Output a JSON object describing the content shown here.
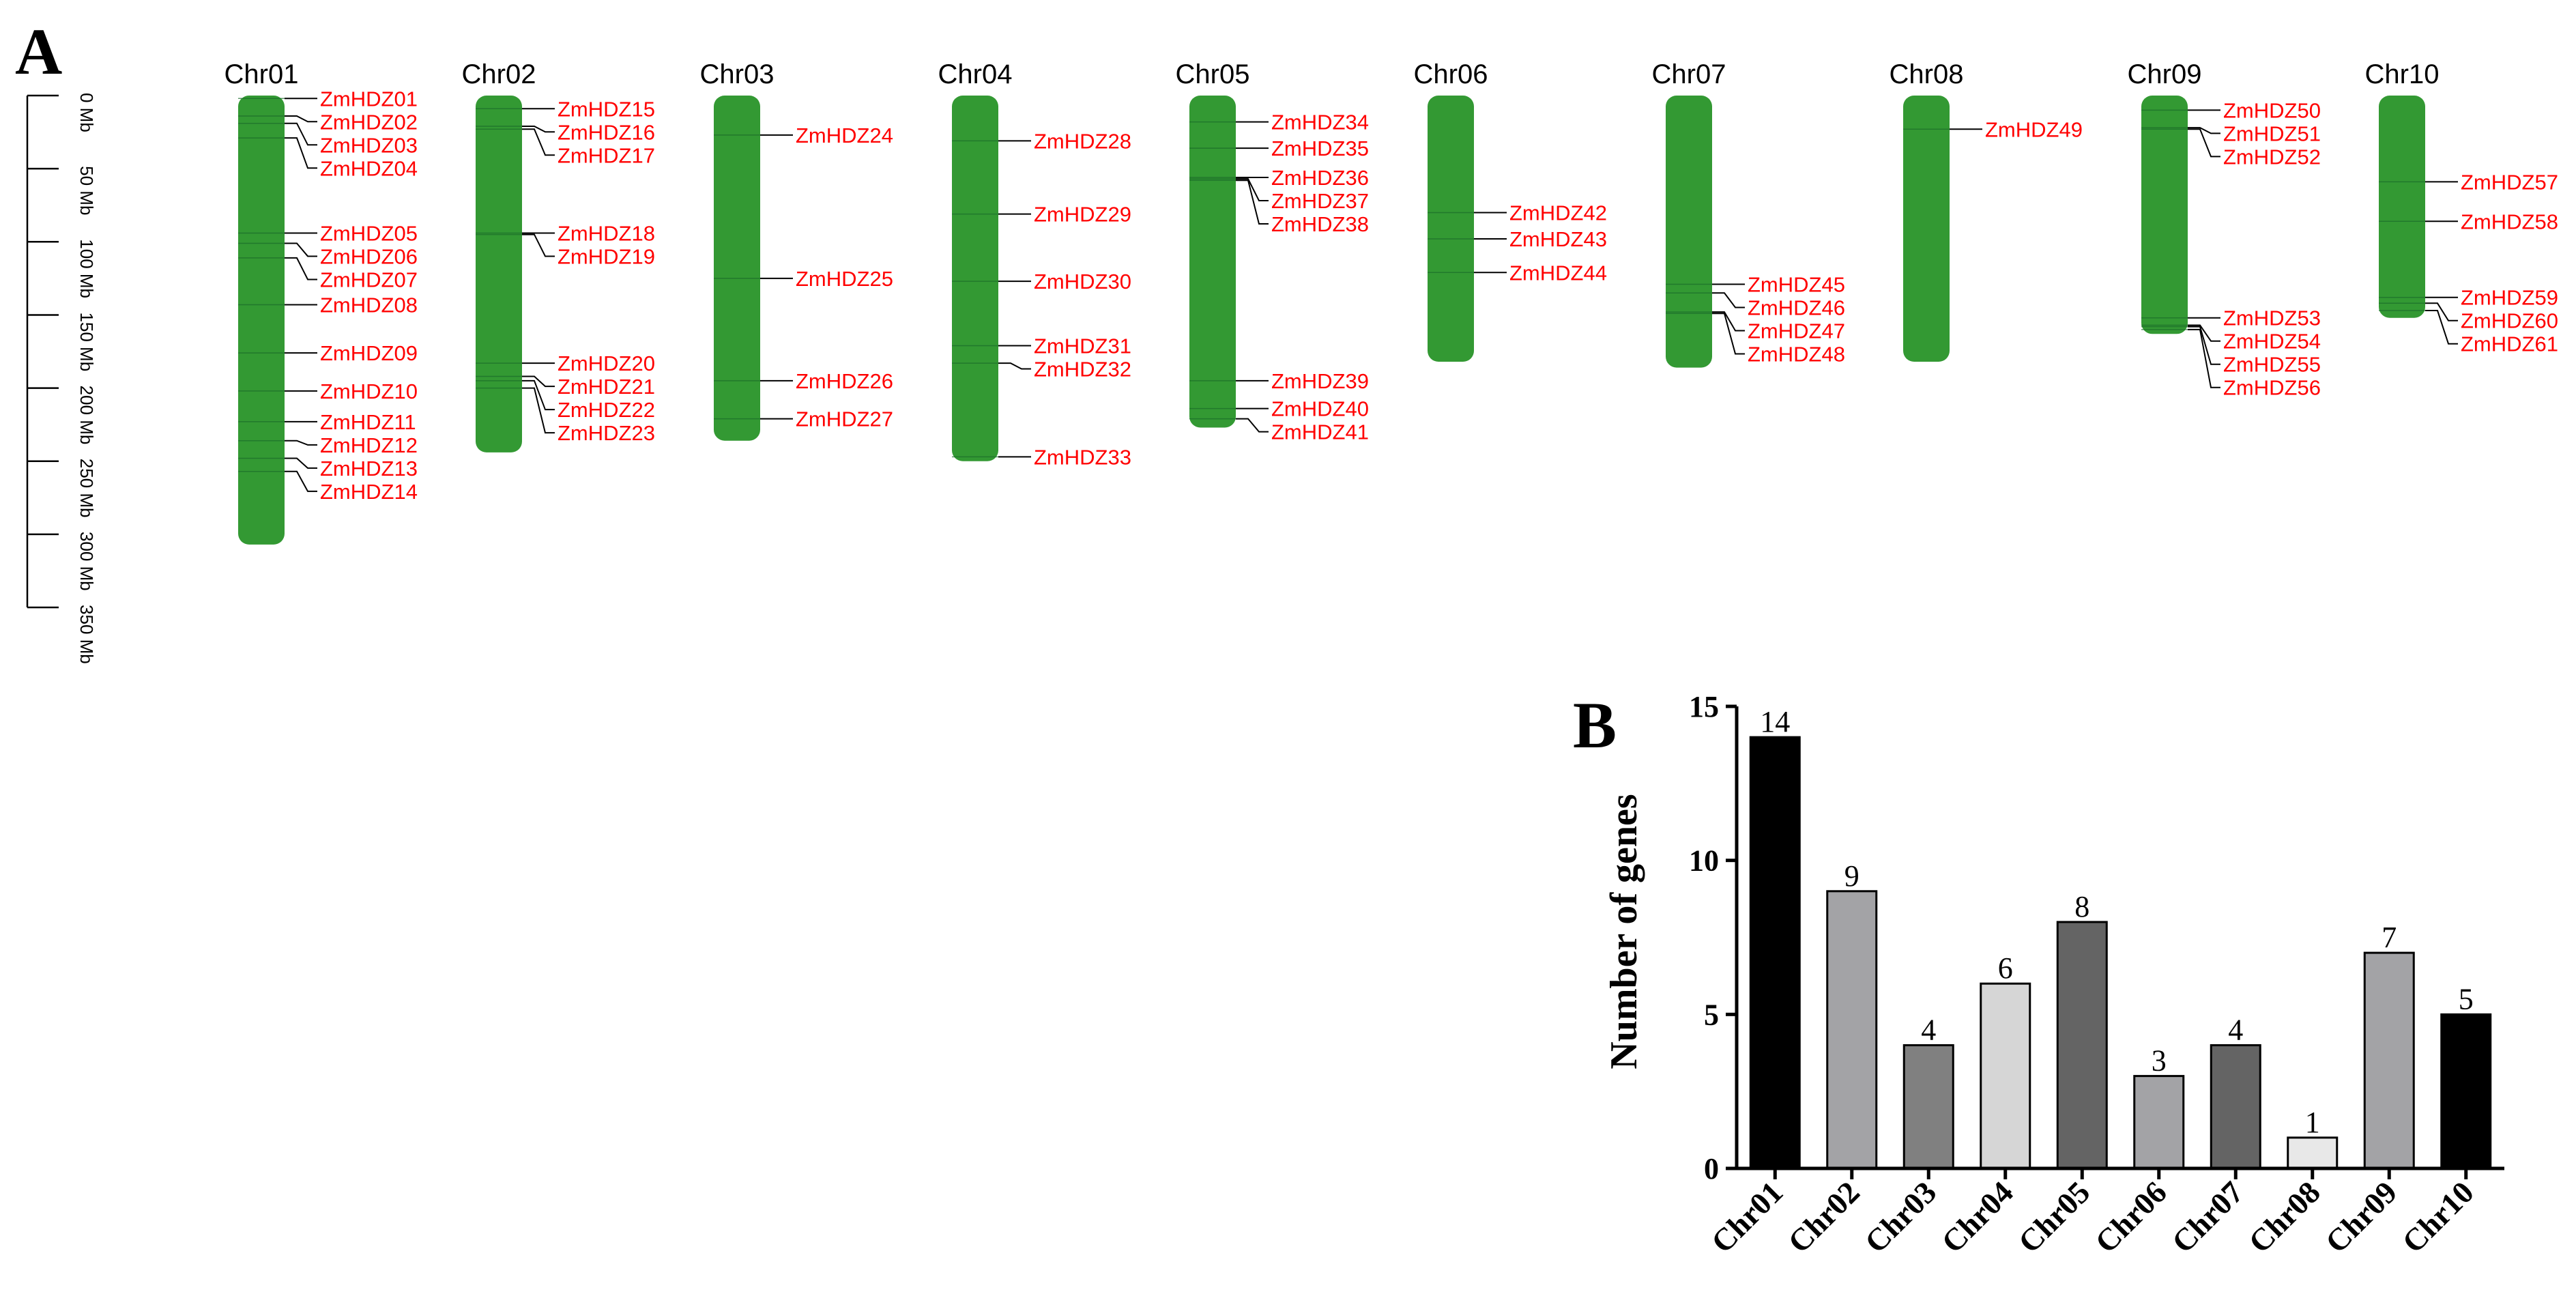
{
  "panel_a": {
    "label": "A",
    "scale": {
      "ticks": [
        {
          "value": 0,
          "label": "0 Mb"
        },
        {
          "value": 50,
          "label": "50 Mb"
        },
        {
          "value": 100,
          "label": "100 Mb"
        },
        {
          "value": 150,
          "label": "150 Mb"
        },
        {
          "value": 200,
          "label": "200 Mb"
        },
        {
          "value": 250,
          "label": "250 Mb"
        },
        {
          "value": 300,
          "label": "300 Mb"
        },
        {
          "value": 350,
          "label": "350 Mb"
        }
      ]
    },
    "chromosome_color": "#339933",
    "gene_label_color": "#ff0000"
  },
  "chart_data": [
    {
      "type": "chromosome_map",
      "units": "Mb",
      "chromosomes": [
        {
          "name": "Chr01",
          "length": 307,
          "genes": [
            {
              "name": "ZmHDZ01",
              "pos": 2
            },
            {
              "name": "ZmHDZ02",
              "pos": 14
            },
            {
              "name": "ZmHDZ03",
              "pos": 19
            },
            {
              "name": "ZmHDZ04",
              "pos": 29
            },
            {
              "name": "ZmHDZ05",
              "pos": 94
            },
            {
              "name": "ZmHDZ06",
              "pos": 101
            },
            {
              "name": "ZmHDZ07",
              "pos": 111
            },
            {
              "name": "ZmHDZ08",
              "pos": 143
            },
            {
              "name": "ZmHDZ09",
              "pos": 176
            },
            {
              "name": "ZmHDZ10",
              "pos": 202
            },
            {
              "name": "ZmHDZ11",
              "pos": 223
            },
            {
              "name": "ZmHDZ12",
              "pos": 236
            },
            {
              "name": "ZmHDZ13",
              "pos": 248
            },
            {
              "name": "ZmHDZ14",
              "pos": 257
            }
          ]
        },
        {
          "name": "Chr02",
          "length": 244,
          "genes": [
            {
              "name": "ZmHDZ15",
              "pos": 9
            },
            {
              "name": "ZmHDZ16",
              "pos": 21
            },
            {
              "name": "ZmHDZ17",
              "pos": 23
            },
            {
              "name": "ZmHDZ18",
              "pos": 94
            },
            {
              "name": "ZmHDZ19",
              "pos": 95
            },
            {
              "name": "ZmHDZ20",
              "pos": 183
            },
            {
              "name": "ZmHDZ21",
              "pos": 192
            },
            {
              "name": "ZmHDZ22",
              "pos": 195
            },
            {
              "name": "ZmHDZ23",
              "pos": 200
            }
          ]
        },
        {
          "name": "Chr03",
          "length": 236,
          "genes": [
            {
              "name": "ZmHDZ24",
              "pos": 27
            },
            {
              "name": "ZmHDZ25",
              "pos": 125
            },
            {
              "name": "ZmHDZ26",
              "pos": 195
            },
            {
              "name": "ZmHDZ27",
              "pos": 221
            }
          ]
        },
        {
          "name": "Chr04",
          "length": 250,
          "genes": [
            {
              "name": "ZmHDZ28",
              "pos": 31
            },
            {
              "name": "ZmHDZ29",
              "pos": 81
            },
            {
              "name": "ZmHDZ30",
              "pos": 127
            },
            {
              "name": "ZmHDZ31",
              "pos": 171
            },
            {
              "name": "ZmHDZ32",
              "pos": 183
            },
            {
              "name": "ZmHDZ33",
              "pos": 247
            }
          ]
        },
        {
          "name": "Chr05",
          "length": 227,
          "genes": [
            {
              "name": "ZmHDZ34",
              "pos": 18
            },
            {
              "name": "ZmHDZ35",
              "pos": 36
            },
            {
              "name": "ZmHDZ36",
              "pos": 56
            },
            {
              "name": "ZmHDZ37",
              "pos": 57
            },
            {
              "name": "ZmHDZ38",
              "pos": 58
            },
            {
              "name": "ZmHDZ39",
              "pos": 195
            },
            {
              "name": "ZmHDZ40",
              "pos": 214
            },
            {
              "name": "ZmHDZ41",
              "pos": 221
            }
          ]
        },
        {
          "name": "Chr06",
          "length": 182,
          "genes": [
            {
              "name": "ZmHDZ42",
              "pos": 80
            },
            {
              "name": "ZmHDZ43",
              "pos": 98
            },
            {
              "name": "ZmHDZ44",
              "pos": 121
            }
          ]
        },
        {
          "name": "Chr07",
          "length": 186,
          "genes": [
            {
              "name": "ZmHDZ45",
              "pos": 129
            },
            {
              "name": "ZmHDZ46",
              "pos": 135
            },
            {
              "name": "ZmHDZ47",
              "pos": 148
            },
            {
              "name": "ZmHDZ48",
              "pos": 149
            }
          ]
        },
        {
          "name": "Chr08",
          "length": 182,
          "genes": [
            {
              "name": "ZmHDZ49",
              "pos": 23
            }
          ]
        },
        {
          "name": "Chr09",
          "length": 163,
          "genes": [
            {
              "name": "ZmHDZ50",
              "pos": 10
            },
            {
              "name": "ZmHDZ51",
              "pos": 22
            },
            {
              "name": "ZmHDZ52",
              "pos": 23
            },
            {
              "name": "ZmHDZ53",
              "pos": 152
            },
            {
              "name": "ZmHDZ54",
              "pos": 157
            },
            {
              "name": "ZmHDZ55",
              "pos": 158
            },
            {
              "name": "ZmHDZ56",
              "pos": 160
            }
          ]
        },
        {
          "name": "Chr10",
          "length": 152,
          "genes": [
            {
              "name": "ZmHDZ57",
              "pos": 59
            },
            {
              "name": "ZmHDZ58",
              "pos": 86
            },
            {
              "name": "ZmHDZ59",
              "pos": 138
            },
            {
              "name": "ZmHDZ60",
              "pos": 142
            },
            {
              "name": "ZmHDZ61",
              "pos": 147
            }
          ]
        }
      ]
    },
    {
      "type": "bar",
      "panel_label": "B",
      "categories": [
        "Chr01",
        "Chr02",
        "Chr03",
        "Chr04",
        "Chr05",
        "Chr06",
        "Chr07",
        "Chr08",
        "Chr09",
        "Chr10"
      ],
      "values": [
        14,
        9,
        4,
        6,
        8,
        3,
        4,
        1,
        7,
        5
      ],
      "colors": [
        "#000000",
        "#a3a3a6",
        "#808080",
        "#d6d6d6",
        "#646464",
        "#a3a3a6",
        "#646464",
        "#e8e8e8",
        "#a3a3a6",
        "#000000"
      ],
      "ylabel": "Number of genes",
      "xlabel": "",
      "ylim": [
        0,
        15
      ],
      "yticks": [
        0,
        5,
        10,
        15
      ],
      "ytick_labels": [
        "0",
        "5",
        "10",
        "15"
      ],
      "grid": false
    }
  ]
}
